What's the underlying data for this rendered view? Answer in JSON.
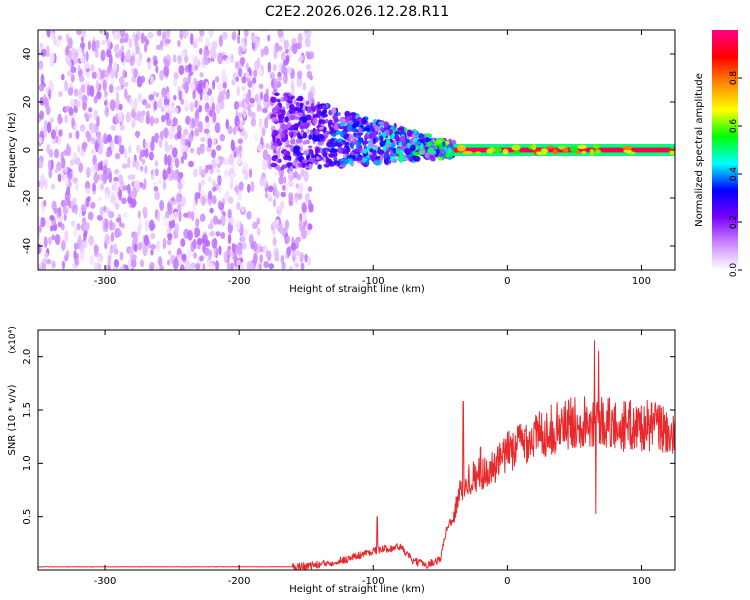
{
  "title": "C2E2.2026.026.12.28.R11",
  "colors": {
    "snr_line": "#e8282a",
    "axis": "#000000",
    "background": "#ffffff"
  },
  "chart_data": [
    {
      "type": "heatmap",
      "xlabel": "Height of straight line (km)",
      "ylabel": "Frequency (Hz)",
      "xlim": [
        -350,
        125
      ],
      "ylim": [
        -50,
        50
      ],
      "x_ticks": [
        "-300",
        "-200",
        "-100",
        "0",
        "100"
      ],
      "x_tick_values": [
        -300,
        -200,
        -100,
        0,
        100
      ],
      "y_ticks": [
        "-40",
        "-20",
        "0",
        "20",
        "40"
      ],
      "y_tick_values": [
        -40,
        -20,
        0,
        20,
        40
      ],
      "colorbar": {
        "label": "Normalized spectral amplitude",
        "range": [
          0,
          1
        ],
        "ticks": [
          "0.0",
          "0.2",
          "0.4",
          "0.6",
          "0.8"
        ],
        "tick_values": [
          0,
          0.2,
          0.4,
          0.6,
          0.8
        ],
        "colormap": [
          "#ffffff",
          "#cc88ff",
          "#7700ff",
          "#0000ff",
          "#00ffff",
          "#00ff00",
          "#ffff00",
          "#ff8800",
          "#ff0000",
          "#ff0088"
        ]
      },
      "regions": [
        {
          "description": "broadband noise",
          "x": [
            -350,
            -145
          ],
          "freq": [
            -50,
            50
          ],
          "amplitude": [
            0.02,
            0.15
          ]
        },
        {
          "description": "signal onset",
          "x": [
            -175,
            -40
          ],
          "freq": [
            -15,
            20
          ],
          "amplitude": [
            0.1,
            0.5
          ]
        },
        {
          "description": "narrowband carrier",
          "x": [
            -40,
            125
          ],
          "freq": [
            -1,
            1
          ],
          "amplitude": [
            0.8,
            1.0
          ]
        }
      ]
    },
    {
      "type": "line",
      "xlabel": "Height of straight line (km)",
      "ylabel": "SNR (10 * v/v)",
      "y_multiplier": "(x10⁴)",
      "xlim": [
        -350,
        125
      ],
      "ylim": [
        0,
        2.25
      ],
      "x_ticks": [
        "-300",
        "-200",
        "-100",
        "0",
        "100"
      ],
      "x_tick_values": [
        -300,
        -200,
        -100,
        0,
        100
      ],
      "y_ticks": [
        "0.5",
        "1.0",
        "1.5",
        "2.0"
      ],
      "y_tick_values": [
        0.5,
        1.0,
        1.5,
        2.0
      ],
      "series": [
        {
          "x": [
            -350,
            -300,
            -250,
            -200,
            -160,
            -140,
            -120,
            -100,
            -90,
            -80,
            -70,
            -60,
            -50,
            -45,
            -40,
            -35,
            -30,
            -20,
            -10,
            0,
            10,
            20,
            30,
            40,
            50,
            55,
            60,
            65,
            70,
            75,
            80,
            90,
            100,
            110,
            120,
            125
          ],
          "y": [
            0.03,
            0.03,
            0.03,
            0.03,
            0.03,
            0.05,
            0.1,
            0.18,
            0.2,
            0.22,
            0.08,
            0.05,
            0.1,
            0.4,
            0.5,
            0.75,
            0.85,
            0.9,
            0.95,
            1.1,
            1.2,
            1.25,
            1.3,
            1.35,
            1.38,
            1.4,
            1.42,
            1.4,
            1.4,
            1.38,
            1.35,
            1.35,
            1.35,
            1.35,
            1.3,
            1.2
          ]
        }
      ],
      "peaks": [
        {
          "x": -97,
          "y": 0.5
        },
        {
          "x": -33,
          "y": 1.58
        },
        {
          "x": -20,
          "y": 1.15
        },
        {
          "x": 65,
          "y": 2.15
        },
        {
          "x": 68,
          "y": 2.05
        },
        {
          "x": 66,
          "y": 0.53
        }
      ]
    }
  ]
}
